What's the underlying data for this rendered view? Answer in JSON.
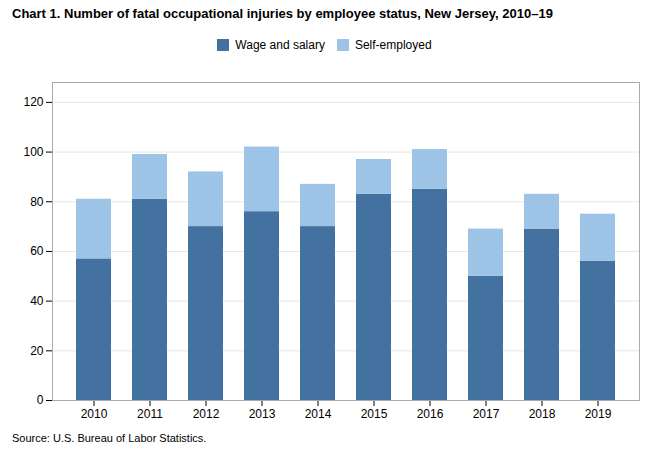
{
  "chart_data": {
    "type": "bar",
    "stacked": true,
    "title": "Chart 1. Number of fatal occupational injuries by employee status, New Jersey, 2010–19",
    "source": "Source: U.S. Bureau of Labor Statistics.",
    "categories": [
      "2010",
      "2011",
      "2012",
      "2013",
      "2014",
      "2015",
      "2016",
      "2017",
      "2018",
      "2019"
    ],
    "series": [
      {
        "name": "Wage and salary",
        "color": "#4472A0",
        "values": [
          57,
          81,
          70,
          76,
          70,
          83,
          85,
          50,
          69,
          56
        ]
      },
      {
        "name": "Self-employed",
        "color": "#9DC3E6",
        "values": [
          24,
          18,
          22,
          26,
          17,
          14,
          16,
          19,
          14,
          19
        ]
      }
    ],
    "ylim": [
      0,
      128
    ],
    "yticks": [
      0,
      20,
      40,
      60,
      80,
      100,
      120
    ],
    "grid": true,
    "legend": "top"
  }
}
